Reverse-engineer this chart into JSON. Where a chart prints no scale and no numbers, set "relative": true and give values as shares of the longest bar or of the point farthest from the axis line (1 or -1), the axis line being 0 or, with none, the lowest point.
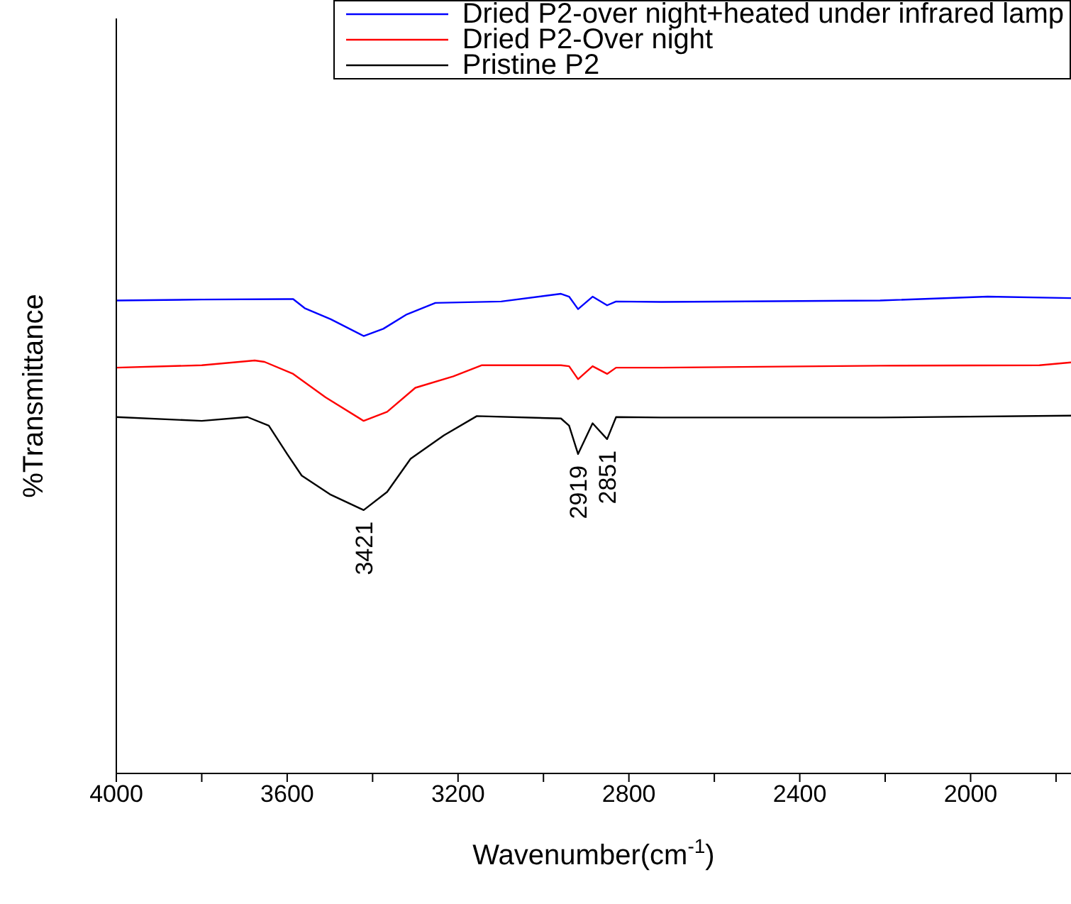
{
  "chart_data": {
    "type": "line",
    "relative": true,
    "xlabel": "Wavenumber(cm$^{-1}$)",
    "ylabel": "%Transmittance",
    "xlim": [
      4000,
      1765
    ],
    "xticks": [
      4000,
      {
        "value": 3800,
        "label": null
      },
      3600,
      {
        "value": 3400,
        "label": null
      },
      3200,
      {
        "value": 3000,
        "label": null
      },
      2800,
      {
        "value": 2600,
        "label": null
      },
      2400,
      {
        "value": 2200,
        "label": null
      },
      2000,
      {
        "value": 1800,
        "label": null
      }
    ],
    "tick_labels": "x",
    "legend": "top right",
    "grid": false,
    "marker": "none",
    "line_style": "solid",
    "series": [
      {
        "name": "Dried P2-over night+heated under infrared lamp",
        "color": "#0000ff",
        "x": [
          4000,
          3800,
          3600,
          3586,
          3559,
          3498,
          3421,
          3375,
          3320,
          3253,
          3099,
          2959,
          2940,
          2919,
          2885,
          2851,
          2830,
          2724,
          2212,
          1960,
          1765
        ],
        "values": [
          0.986,
          0.988,
          0.989,
          0.989,
          0.97,
          0.947,
          0.912,
          0.927,
          0.957,
          0.981,
          0.984,
          1,
          0.994,
          0.968,
          0.994,
          0.976,
          0.984,
          0.983,
          0.986,
          0.994,
          0.991
        ]
      },
      {
        "name": "Dried P2-Over night",
        "color": "#ff0000",
        "x": [
          4000,
          3800,
          3676,
          3653,
          3586,
          3510,
          3421,
          3366,
          3300,
          3211,
          3144,
          2959,
          2940,
          2919,
          2885,
          2851,
          2830,
          2724,
          2212,
          1839,
          1765
        ],
        "values": [
          0.846,
          0.851,
          0.861,
          0.858,
          0.833,
          0.784,
          0.735,
          0.754,
          0.804,
          0.828,
          0.851,
          0.851,
          0.849,
          0.822,
          0.849,
          0.833,
          0.846,
          0.846,
          0.85,
          0.851,
          0.857
        ]
      },
      {
        "name": "Pristine P2",
        "color": "#000000",
        "x": [
          4000,
          3800,
          3693,
          3643,
          3600,
          3566,
          3500,
          3421,
          3366,
          3311,
          3233,
          3156,
          2959,
          2940,
          2919,
          2885,
          2851,
          2830,
          2724,
          2212,
          1765
        ],
        "values": [
          0.743,
          0.735,
          0.743,
          0.725,
          0.666,
          0.621,
          0.582,
          0.549,
          0.587,
          0.656,
          0.705,
          0.745,
          0.74,
          0.725,
          0.666,
          0.73,
          0.697,
          0.743,
          0.742,
          0.742,
          0.746
        ]
      }
    ],
    "annotations": [
      {
        "text": "3421",
        "x": 3421,
        "y": 0.549
      },
      {
        "text": "2919",
        "x": 2919,
        "y": 0.666
      },
      {
        "text": "2851",
        "x": 2851,
        "y": 0.697
      }
    ]
  }
}
